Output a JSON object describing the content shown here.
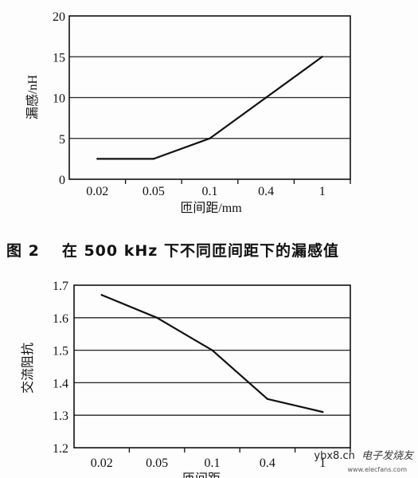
{
  "chart_data": [
    {
      "type": "line",
      "title": "",
      "ylabel": "漏感/nH",
      "xlabel": "匝间距/mm",
      "categories": [
        "0.02",
        "0.05",
        "0.1",
        "0.4",
        "1"
      ],
      "series": [
        {
          "values": [
            2.5,
            2.5,
            5,
            10,
            15
          ]
        }
      ],
      "yticks": [
        "0",
        "5",
        "10",
        "15",
        "20"
      ],
      "ylim": [
        0,
        20
      ],
      "grid": true,
      "line_color": "#111111"
    },
    {
      "type": "line",
      "title": "",
      "ylabel": "交流阻抗",
      "xlabel": "匝间距",
      "categories": [
        "0.02",
        "0.05",
        "0.1",
        "0.4",
        "1"
      ],
      "series": [
        {
          "values": [
            1.67,
            1.6,
            1.5,
            1.35,
            1.31
          ]
        }
      ],
      "yticks": [
        "1.2",
        "1.3",
        "1.4",
        "1.5",
        "1.6",
        "1.7"
      ],
      "ylim": [
        1.2,
        1.7
      ],
      "grid": true,
      "line_color": "#111111"
    }
  ],
  "caption": {
    "label": "图 2",
    "text": "在 500 kHz 下不同匝间距下的漏感值"
  },
  "watermark": {
    "site": "ybx8.cn",
    "brand": "电子发烧友",
    "url": "www.elecfans.com"
  }
}
